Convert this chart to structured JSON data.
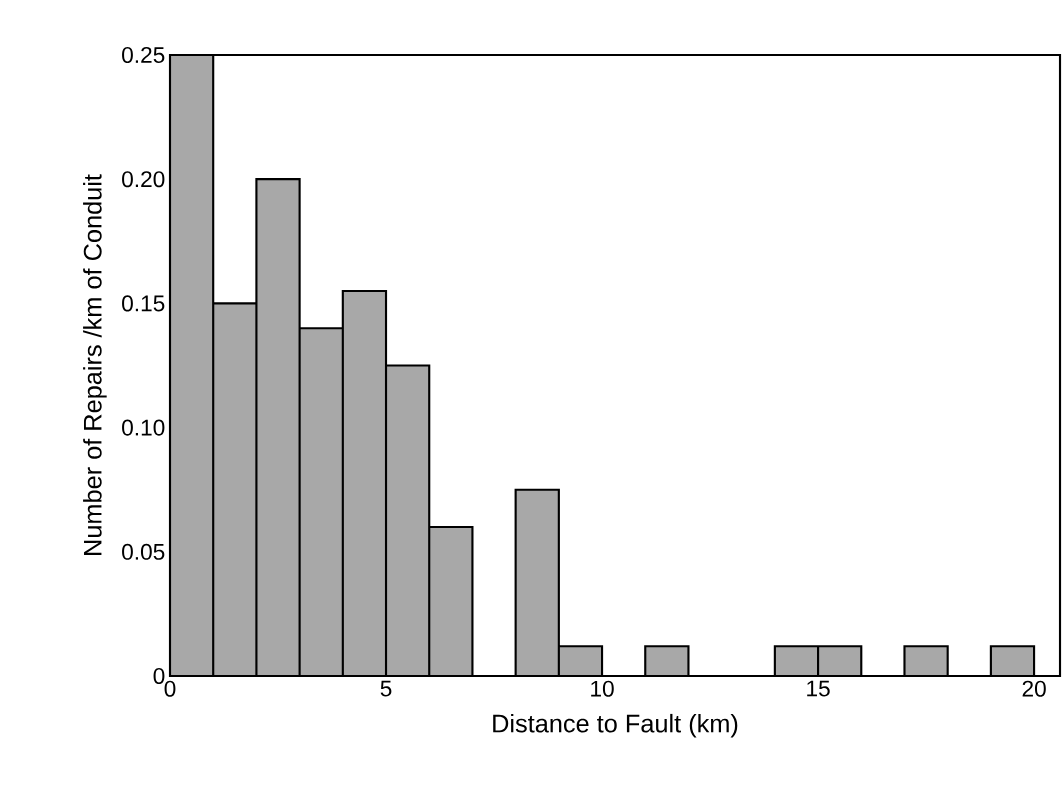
{
  "chart_data": {
    "type": "histogram",
    "xlabel": "Distance to Fault (km)",
    "ylabel": "Number of Repairs /km of Conduit",
    "color": "#a8a8a8",
    "bins": [
      0,
      1,
      2,
      3,
      4,
      5,
      6,
      7,
      8,
      9,
      10,
      11,
      12,
      13,
      14,
      15,
      16,
      17,
      18,
      19,
      20
    ],
    "values": [
      0.25,
      0.15,
      0.2,
      0.14,
      0.155,
      0.125,
      0.06,
      0,
      0.075,
      0.012,
      0,
      0.012,
      0,
      0,
      0.012,
      0.012,
      0,
      0.012,
      0,
      0.012
    ],
    "xlim": [
      0,
      20.6
    ],
    "ylim": [
      0,
      0.25
    ],
    "xticks": [
      0,
      5,
      10,
      15,
      20
    ],
    "yticks": [
      0,
      {
        "value": 0.05,
        "label": "0.05"
      },
      {
        "value": 0.1,
        "label": "0.10"
      },
      {
        "value": 0.15,
        "label": "0.15"
      },
      {
        "value": 0.2,
        "label": "0.20"
      },
      {
        "value": 0.25,
        "label": "0.25"
      }
    ]
  }
}
